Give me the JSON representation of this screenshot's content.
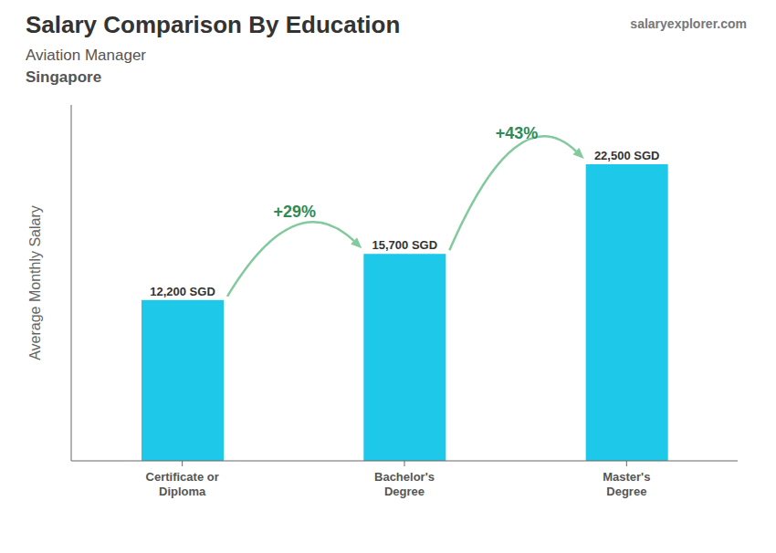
{
  "chart_data": {
    "type": "bar",
    "title": "Salary Comparison By Education",
    "subtitle": "Aviation Manager",
    "annotations": [
      "Singapore",
      "salaryexplorer.com",
      "+29%",
      "+43%"
    ],
    "categories": [
      "Certificate or\nDiploma",
      "Bachelor's\nDegree",
      "Master's\nDegree"
    ],
    "values": [
      12200,
      15700,
      22500
    ],
    "value_labels": [
      "12,200 SGD",
      "15,700 SGD",
      "22,500 SGD"
    ],
    "data_labels": true,
    "color": "#1EC8E8",
    "ylabel": "Average Monthly Salary",
    "ylim": [
      0,
      27000
    ],
    "tick_labels": "x",
    "grid": false
  }
}
